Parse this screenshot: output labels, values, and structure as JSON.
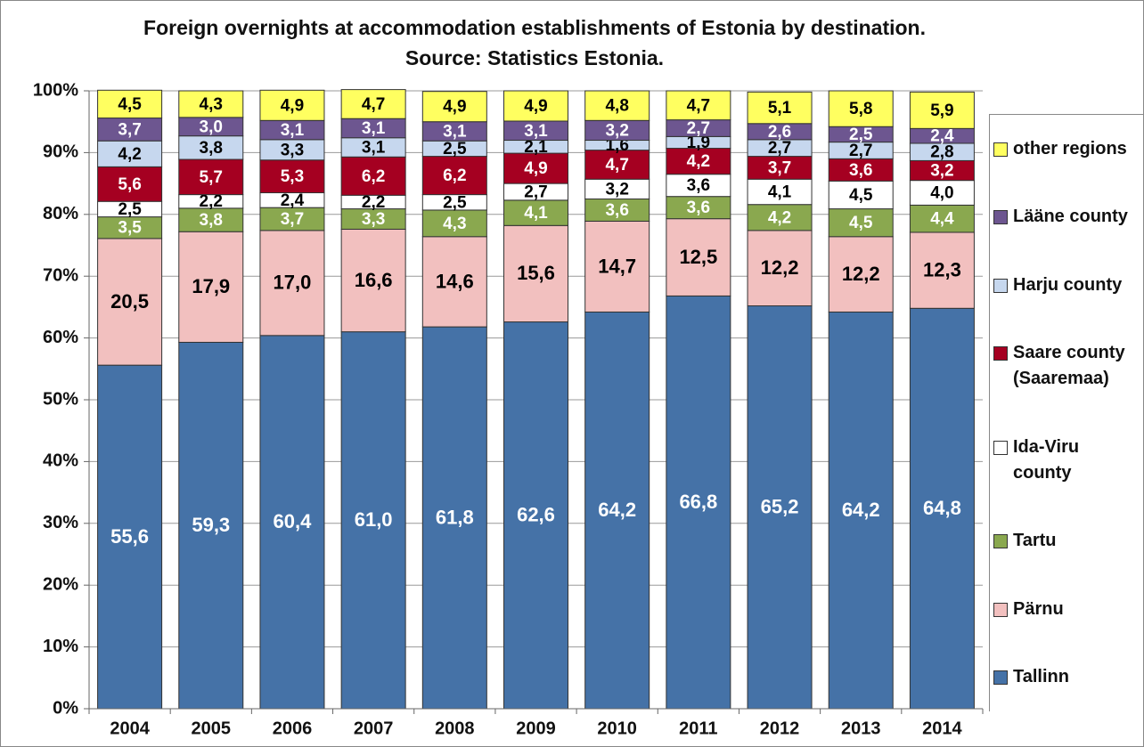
{
  "chart_data": {
    "type": "stacked_bar",
    "title": "Foreign overnights at accommodation establishments of Estonia by destination.  Source: Statistics Estonia.",
    "categories": [
      "2004",
      "2005",
      "2006",
      "2007",
      "2008",
      "2009",
      "2010",
      "2011",
      "2012",
      "2013",
      "2014"
    ],
    "ylim": [
      0,
      100
    ],
    "yticks": [
      {
        "value": 0,
        "label": "0%"
      },
      {
        "value": 10,
        "label": "10%"
      },
      {
        "value": 20,
        "label": "20%"
      },
      {
        "value": 30,
        "label": "30%"
      },
      {
        "value": 40,
        "label": "40%"
      },
      {
        "value": 50,
        "label": "50%"
      },
      {
        "value": 60,
        "label": "60%"
      },
      {
        "value": 70,
        "label": "70%"
      },
      {
        "value": 80,
        "label": "80%"
      },
      {
        "value": 90,
        "label": "90%"
      },
      {
        "value": 100,
        "label": "100%"
      }
    ],
    "grid": true,
    "legend": "right",
    "series": [
      {
        "name": "Tallinn",
        "color": "#4572a7",
        "values": [
          55.6,
          59.3,
          60.4,
          61.0,
          61.8,
          62.6,
          64.2,
          66.8,
          65.2,
          64.2,
          64.8
        ],
        "value_labels": [
          "55,6",
          "59,3",
          "60,4",
          "61,0",
          "61,8",
          "62,6",
          "64,2",
          "66,8",
          "65,2",
          "64,2",
          "64,8"
        ]
      },
      {
        "name": "Pärnu",
        "color": "#f2c0bf",
        "values": [
          20.5,
          17.9,
          17.0,
          16.6,
          14.6,
          15.6,
          14.7,
          12.5,
          12.2,
          12.2,
          12.3
        ],
        "value_labels": [
          "20,5",
          "17,9",
          "17,0",
          "16,6",
          "14,6",
          "15,6",
          "14,7",
          "12,5",
          "12,2",
          "12,2",
          "12,3"
        ]
      },
      {
        "name": "Tartu",
        "color": "#8aa84f",
        "values": [
          3.5,
          3.8,
          3.7,
          3.3,
          4.3,
          4.1,
          3.6,
          3.6,
          4.2,
          4.5,
          4.4
        ],
        "value_labels": [
          "3,5",
          "3,8",
          "3,7",
          "3,3",
          "4,3",
          "4,1",
          "3,6",
          "3,6",
          "4,2",
          "4,5",
          "4,4"
        ]
      },
      {
        "name": "Ida-Viru county",
        "color": "#ffffff",
        "values": [
          2.5,
          2.2,
          2.4,
          2.2,
          2.5,
          2.7,
          3.2,
          3.6,
          4.1,
          4.5,
          4.0
        ],
        "value_labels": [
          "2,5",
          "2,2",
          "2,4",
          "2,2",
          "2,5",
          "2,7",
          "3,2",
          "3,6",
          "4,1",
          "4,5",
          "4,0"
        ]
      },
      {
        "name": "Saare county (Saaremaa)",
        "color": "#a50021",
        "values": [
          5.6,
          5.7,
          5.3,
          6.2,
          6.2,
          4.9,
          4.7,
          4.2,
          3.7,
          3.6,
          3.2
        ],
        "value_labels": [
          "5,6",
          "5,7",
          "5,3",
          "6,2",
          "6,2",
          "4,9",
          "4,7",
          "4,2",
          "3,7",
          "3,6",
          "3,2"
        ]
      },
      {
        "name": "Harju county",
        "color": "#c6d7ee",
        "values": [
          4.2,
          3.8,
          3.3,
          3.1,
          2.5,
          2.1,
          1.6,
          1.9,
          2.7,
          2.7,
          2.8
        ],
        "value_labels": [
          "4,2",
          "3,8",
          "3,3",
          "3,1",
          "2,5",
          "2,1",
          "1,6",
          "1,9",
          "2,7",
          "2,7",
          "2,8"
        ]
      },
      {
        "name": "Lääne county",
        "color": "#6d5690",
        "values": [
          3.7,
          3.0,
          3.1,
          3.1,
          3.1,
          3.1,
          3.2,
          2.7,
          2.6,
          2.5,
          2.4
        ],
        "value_labels": [
          "3,7",
          "3,0",
          "3,1",
          "3,1",
          "3,1",
          "3,1",
          "3,2",
          "2,7",
          "2,6",
          "2,5",
          "2,4"
        ]
      },
      {
        "name": "other regions",
        "color": "#ffff60",
        "values": [
          4.5,
          4.3,
          4.9,
          4.7,
          4.9,
          4.9,
          4.8,
          4.7,
          5.1,
          5.8,
          5.9
        ],
        "value_labels": [
          "4,5",
          "4,3",
          "4,9",
          "4,7",
          "4,9",
          "4,9",
          "4,8",
          "4,7",
          "5,1",
          "5,8",
          "5,9"
        ]
      }
    ]
  }
}
